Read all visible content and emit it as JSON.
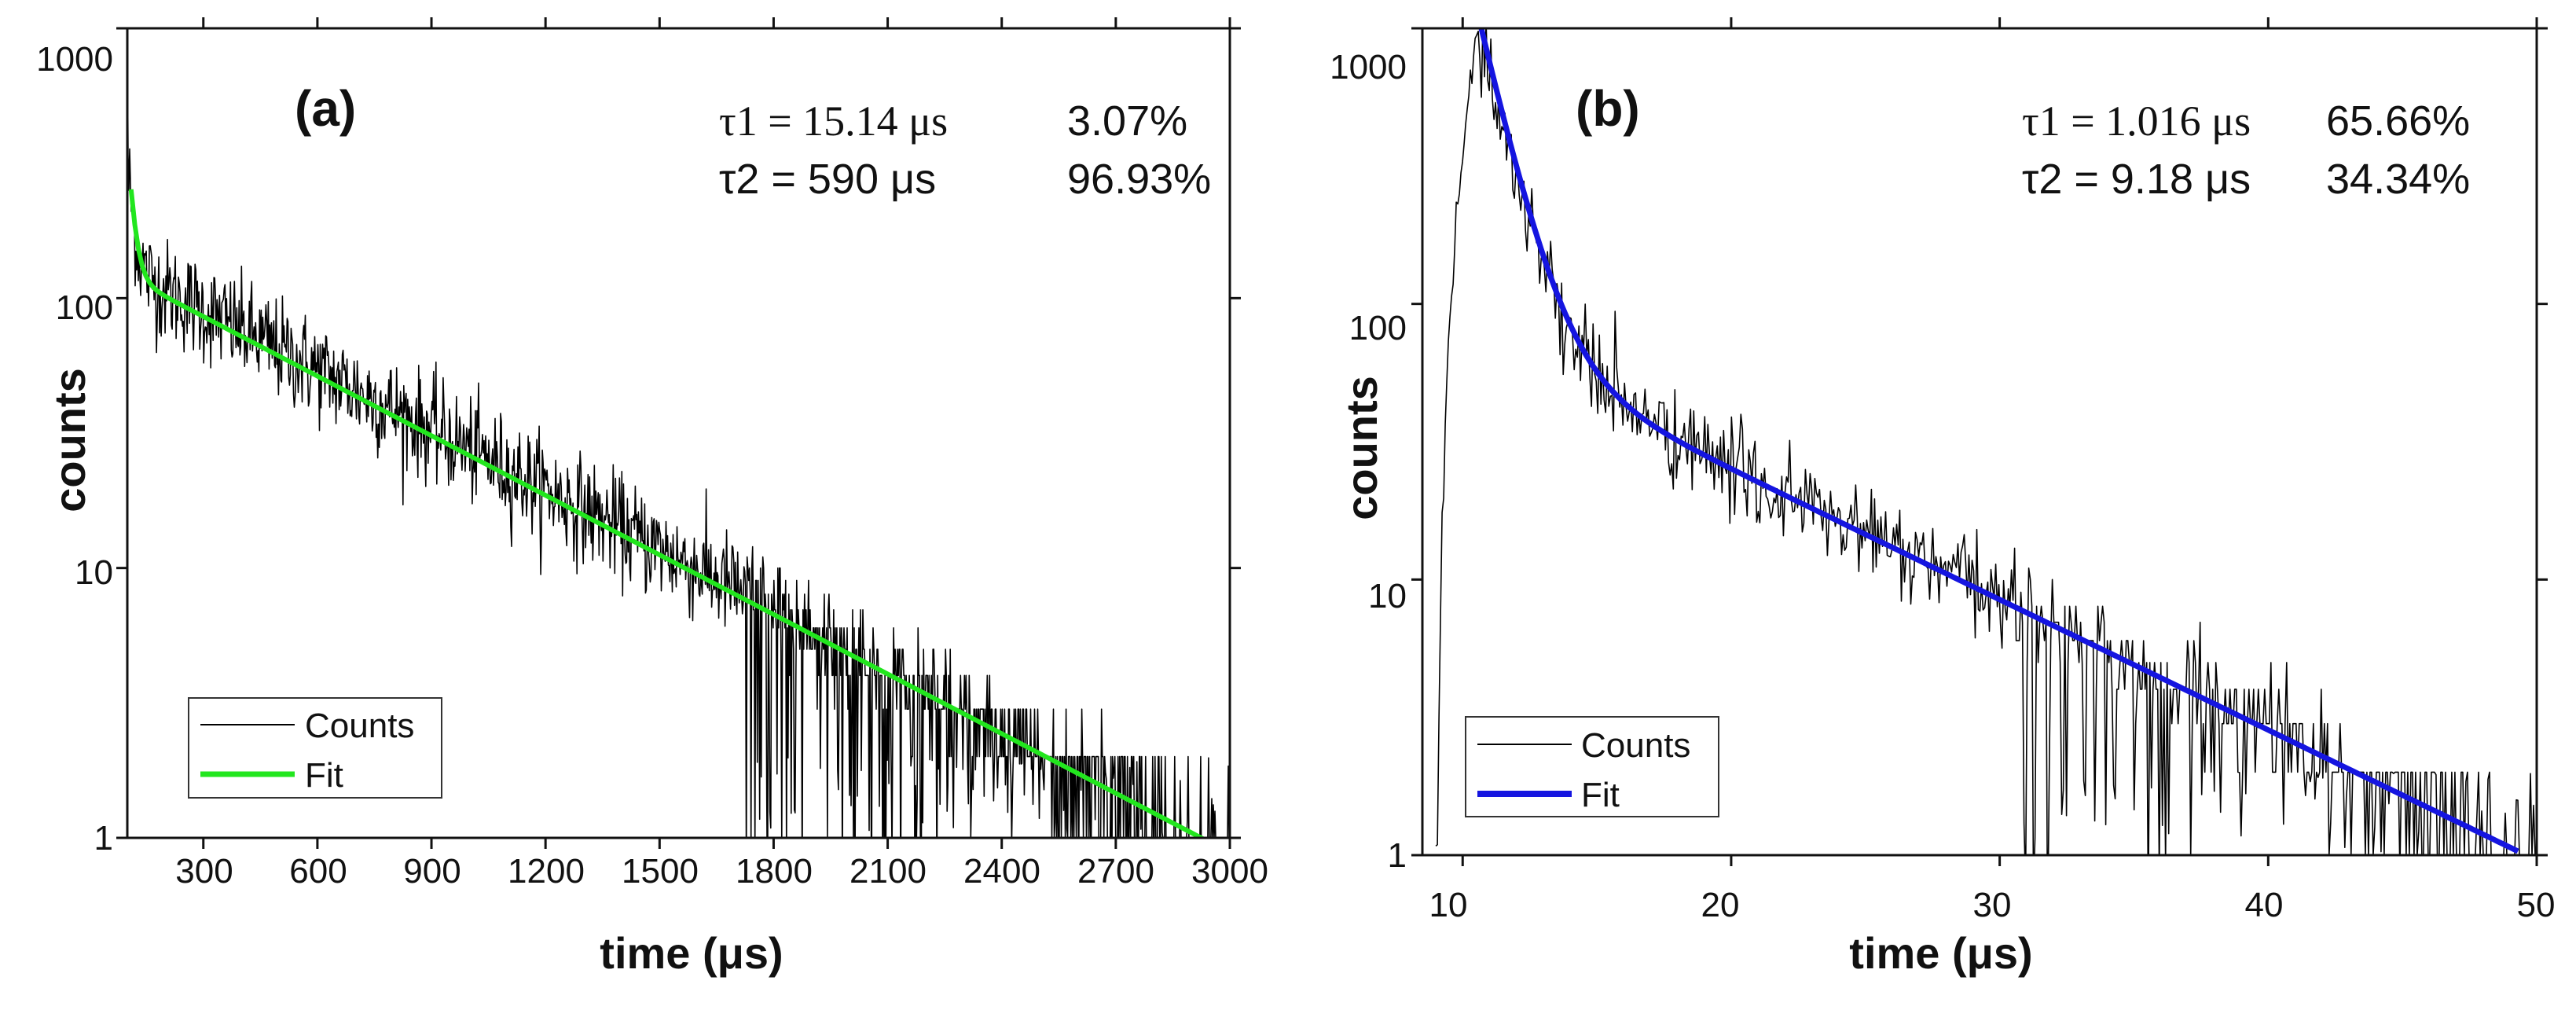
{
  "chart_data": [
    {
      "type": "line",
      "panel_label": "(a)",
      "xlabel": "time (μs)",
      "ylabel": "counts",
      "yscale": "log",
      "xlim": [
        100,
        3000
      ],
      "ylim": [
        1,
        1000
      ],
      "xticks": [
        300,
        600,
        900,
        1200,
        1500,
        1800,
        2100,
        2400,
        2700,
        3000
      ],
      "xtick_labels": [
        "300",
        "600",
        "900",
        "1200",
        "1500",
        "1800",
        "2100",
        "2400",
        "2700",
        "3000"
      ],
      "yticks": [
        1,
        10,
        100,
        1000
      ],
      "ytick_labels": [
        "1",
        "10",
        "100",
        "1000"
      ],
      "annotations": [
        {
          "tau": "τ1 = 15.14 μs",
          "pct": "3.07%"
        },
        {
          "tau": "τ2 = 590 μs",
          "pct": "96.93%"
        }
      ],
      "legend": [
        {
          "label": "Counts",
          "color": "#000000"
        },
        {
          "label": "Fit",
          "color": "#22e61e"
        }
      ],
      "legend_position": "bottom-left",
      "series": [
        {
          "name": "Counts",
          "color": "#000000",
          "model": {
            "t0": 105,
            "noise_sigma": 0.22,
            "components": [
              {
                "amp": 150,
                "tau": 15.14
              },
              {
                "amp": 125,
                "tau": 590
              }
            ]
          },
          "x_range": [
            100,
            3000
          ],
          "points": 1400
        },
        {
          "name": "Fit",
          "color": "#22e61e",
          "model": {
            "t0": 110,
            "components": [
              {
                "amp": 135,
                "tau": 15.14
              },
              {
                "amp": 118,
                "tau": 590
              }
            ]
          },
          "x_range": [
            110,
            3000
          ]
        }
      ]
    },
    {
      "type": "line",
      "panel_label": "(b)",
      "xlabel": "time (μs)",
      "ylabel": "counts",
      "yscale": "log",
      "xlim": [
        8.5,
        50
      ],
      "ylim": [
        1,
        1000
      ],
      "xticks": [
        10,
        20,
        30,
        40,
        50
      ],
      "xtick_labels": [
        "10",
        "20",
        "30",
        "40",
        "50"
      ],
      "yticks": [
        1,
        10,
        100,
        1000
      ],
      "ytick_labels": [
        "1",
        "10",
        "100",
        "1000"
      ],
      "annotations": [
        {
          "tau": "τ1 = 1.016 μs",
          "pct": "65.66%"
        },
        {
          "tau": "τ2 = 9.18 μs",
          "pct": "34.34%"
        }
      ],
      "legend": [
        {
          "label": "Counts",
          "color": "#000000"
        },
        {
          "label": "Fit",
          "color": "#1515e0"
        }
      ],
      "legend_position": "bottom-left",
      "series": [
        {
          "name": "Counts",
          "color": "#000000",
          "rise": {
            "start": 9.0,
            "peak_x": 10.6,
            "peak_y": 1000
          },
          "model": {
            "t0": 10.6,
            "noise_sigma": 0.2,
            "components": [
              {
                "amp": 930,
                "tau": 1.016
              },
              {
                "amp": 70,
                "tau": 9.18
              }
            ]
          },
          "x_range": [
            9.0,
            50
          ],
          "points": 700
        },
        {
          "name": "Fit",
          "color": "#1515e0",
          "model": {
            "t0": 10.6,
            "components": [
              {
                "amp": 1020,
                "tau": 1.016
              },
              {
                "amp": 70,
                "tau": 9.18
              }
            ]
          },
          "x_range": [
            10.6,
            49.3
          ]
        }
      ]
    }
  ]
}
